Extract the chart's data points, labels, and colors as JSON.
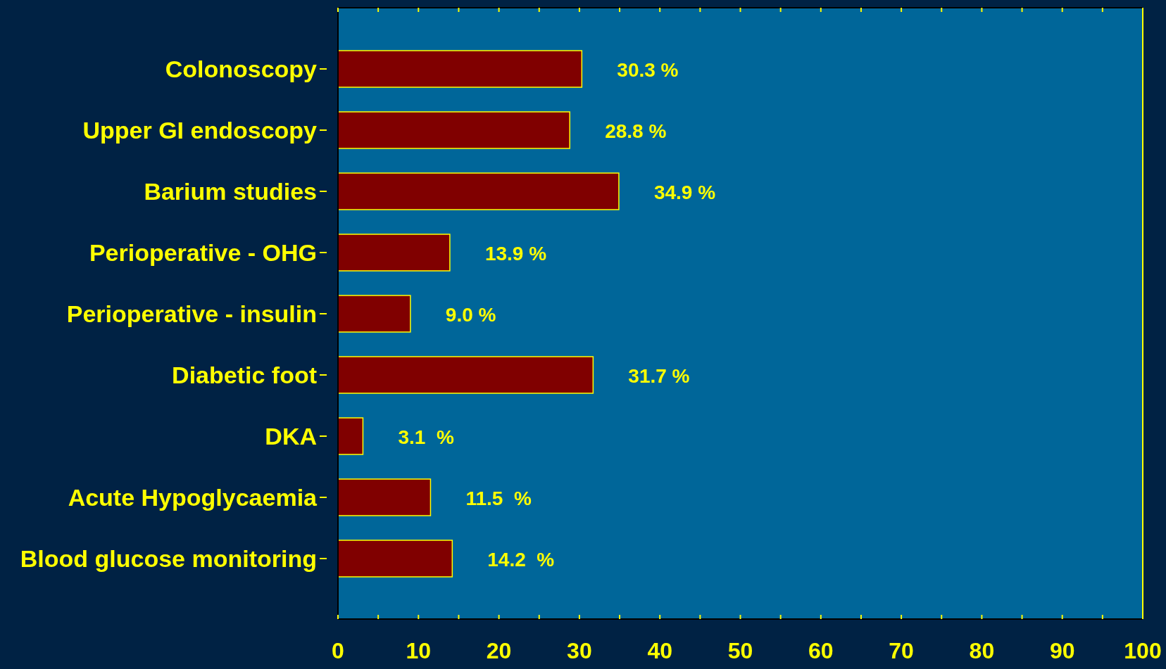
{
  "chart_data": {
    "type": "bar",
    "orientation": "horizontal",
    "categories": [
      "Colonoscopy",
      "Upper GI endoscopy",
      "Barium studies",
      "Perioperative - OHG",
      "Perioperative - insulin",
      "Diabetic foot",
      "DKA",
      "Acute Hypoglycaemia",
      "Blood glucose monitoring"
    ],
    "values": [
      30.3,
      28.8,
      34.9,
      13.9,
      9.0,
      31.7,
      3.1,
      11.5,
      14.2
    ],
    "value_labels": [
      "30.3 %",
      "28.8 %",
      "34.9 %",
      "13.9 %",
      "9.0 %",
      "31.7 %",
      "3.1  %",
      "11.5  %",
      "14.2  %"
    ],
    "color": "#800000",
    "xlim": [
      0,
      100
    ],
    "xticks": [
      0,
      {
        "value": 5,
        "label": null
      },
      10,
      {
        "value": 15,
        "label": null
      },
      20,
      {
        "value": 25,
        "label": null
      },
      30,
      {
        "value": 35,
        "label": null
      },
      40,
      {
        "value": 45,
        "label": null
      },
      50,
      {
        "value": 55,
        "label": null
      },
      60,
      {
        "value": 65,
        "label": null
      },
      70,
      {
        "value": 75,
        "label": null
      },
      80,
      {
        "value": 85,
        "label": null
      },
      90,
      {
        "value": 95,
        "label": null
      },
      100
    ],
    "data_labels": false
  }
}
